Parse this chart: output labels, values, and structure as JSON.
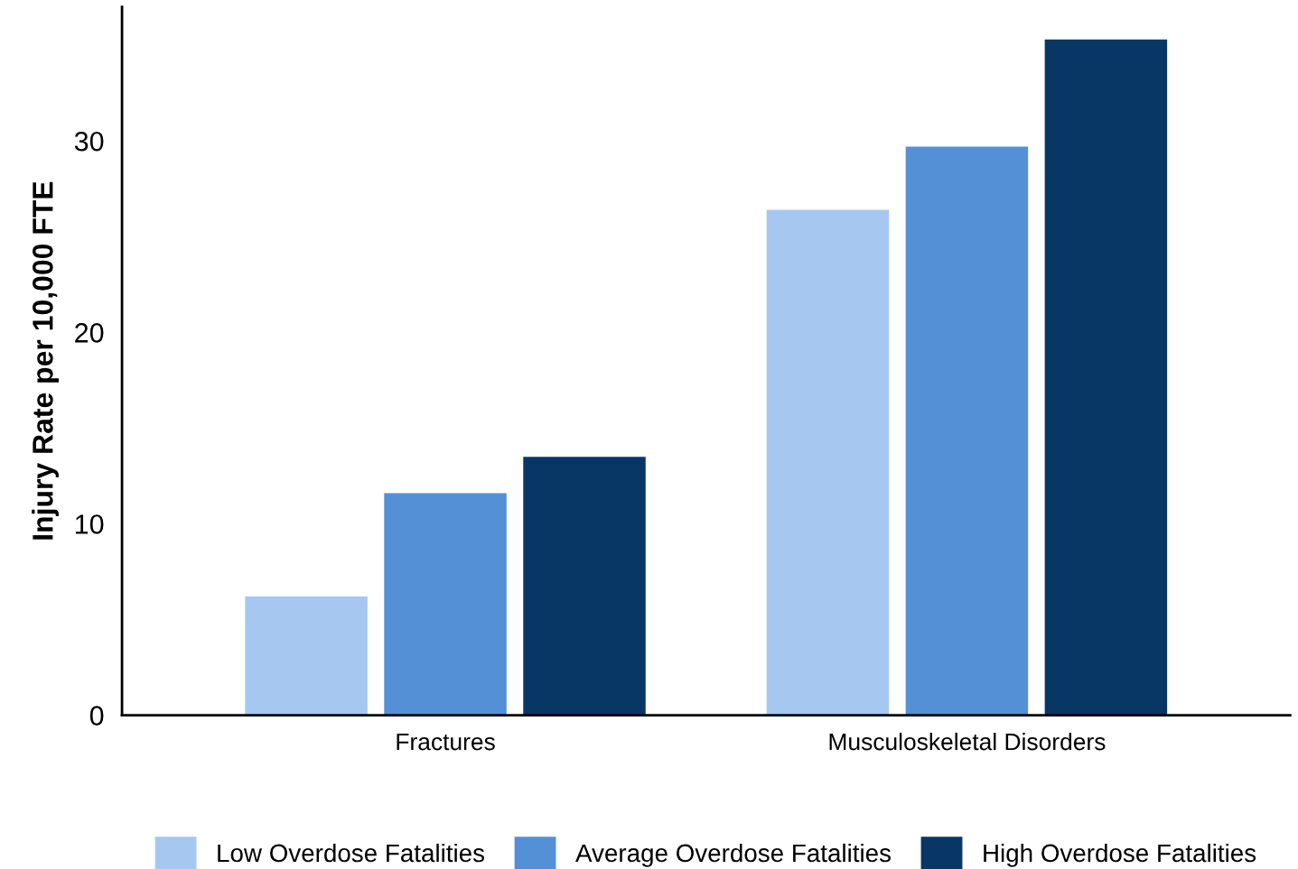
{
  "chart_data": {
    "type": "bar",
    "ylabel": "Injury Rate per 10,000 FTE",
    "categories": [
      "Fractures",
      "Musculoskeletal Disorders"
    ],
    "series": [
      {
        "name": "Low Overdose Fatalities",
        "color": "#a6c8f0",
        "values": [
          6.2,
          26.4
        ]
      },
      {
        "name": "Average Overdose Fatalities",
        "color": "#5490d6",
        "values": [
          11.6,
          29.7
        ]
      },
      {
        "name": "High Overdose Fatalities",
        "color": "#083766",
        "values": [
          13.5,
          35.3
        ]
      }
    ],
    "ylim": [
      0,
      37
    ],
    "yticks": [
      0,
      10,
      20,
      30
    ],
    "grid": false,
    "legend": "bottom"
  }
}
